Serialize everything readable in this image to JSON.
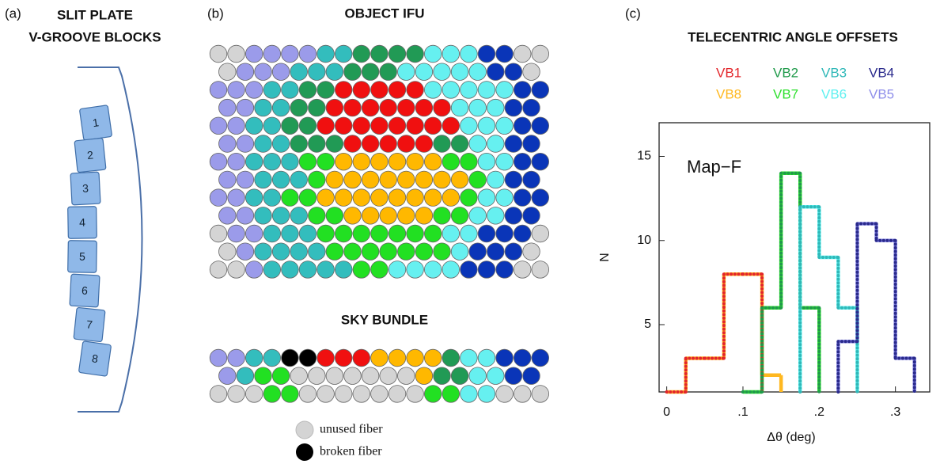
{
  "panel_a": {
    "label": "(a)",
    "title": [
      "SLIT PLATE",
      "V-GROOVE BLOCKS"
    ],
    "blocks": [
      "1",
      "2",
      "3",
      "4",
      "5",
      "6",
      "7",
      "8"
    ]
  },
  "panel_b": {
    "label": "(b)",
    "object_title": "OBJECT IFU",
    "sky_title": "SKY BUNDLE",
    "legend": [
      "unused fiber",
      "broken fiber"
    ]
  },
  "chart_data": {
    "type": "histogram",
    "panel_label": "(c)",
    "title": "TELECENTRIC ANGLE OFFSETS",
    "annotation": "Map−F",
    "xlabel": "Δθ (deg)",
    "ylabel": "N",
    "xlim": [
      -0.01,
      0.345
    ],
    "ylim": [
      1,
      17
    ],
    "xticks": [
      0,
      {
        "value": 0.1,
        "label": ".1"
      },
      {
        "value": 0.2,
        "label": ".2"
      },
      {
        "value": 0.3,
        "label": ".3"
      }
    ],
    "yticks": [
      5,
      10,
      15
    ],
    "series": [
      {
        "name": "VB1",
        "color": "#e3262b",
        "line_style": "dotted",
        "bins": [
          0,
          0.025,
          0.05,
          0.075,
          0.1,
          0.125
        ],
        "values": [
          1,
          3,
          3,
          8,
          8
        ]
      },
      {
        "name": "VB2",
        "color": "#1f9a4a",
        "line_style": "dotted",
        "bins": [
          0.1,
          0.125,
          0.15,
          0.175,
          0.2
        ],
        "values": [
          1,
          6,
          14,
          6
        ]
      },
      {
        "name": "VB3",
        "color": "#2fb8b8",
        "line_style": "dotted",
        "bins": [
          0.175,
          0.2,
          0.225,
          0.25
        ],
        "values": [
          12,
          9,
          6
        ]
      },
      {
        "name": "VB4",
        "color": "#2a2a8c",
        "line_style": "dotted",
        "bins": [
          0.225,
          0.25,
          0.275,
          0.3,
          0.325
        ],
        "values": [
          4,
          11,
          10,
          3
        ]
      },
      {
        "name": "VB8",
        "color": "#ffb820",
        "line_style": "solid",
        "bins": [
          0,
          0.025,
          0.05,
          0.075,
          0.1,
          0.125,
          0.15
        ],
        "values": [
          1,
          3,
          3,
          8,
          8,
          2
        ]
      },
      {
        "name": "VB7",
        "color": "#2ee02e",
        "line_style": "solid",
        "bins": [
          0.1,
          0.125,
          0.15,
          0.175,
          0.2
        ],
        "values": [
          1,
          6,
          14,
          6
        ]
      },
      {
        "name": "VB6",
        "color": "#5ef0f0",
        "line_style": "solid",
        "bins": [
          0.175,
          0.2,
          0.225,
          0.25
        ],
        "values": [
          12,
          9,
          6
        ]
      },
      {
        "name": "VB5",
        "color": "#8f8fea",
        "line_style": "solid",
        "bins": [
          0.225,
          0.25,
          0.275,
          0.3,
          0.325
        ],
        "values": [
          4,
          11,
          10,
          3
        ]
      }
    ]
  }
}
